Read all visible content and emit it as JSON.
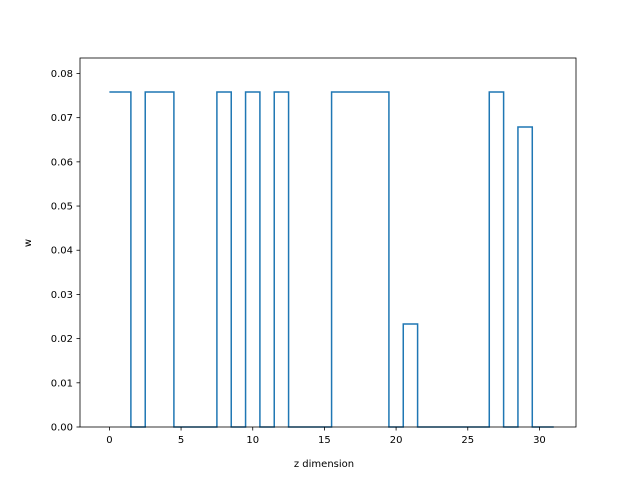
{
  "chart_data": {
    "type": "line",
    "step": "mid",
    "title": "",
    "xlabel": "z dimension",
    "ylabel": "w",
    "xlim": [
      -2.05,
      32.55
    ],
    "ylim": [
      0,
      0.0835
    ],
    "xticks": [
      0,
      5,
      10,
      15,
      20,
      25,
      30
    ],
    "xtick_labels": [
      "0",
      "5",
      "10",
      "15",
      "20",
      "25",
      "30"
    ],
    "yticks": [
      0,
      0.01,
      0.02,
      0.03,
      0.04,
      0.05,
      0.06,
      0.07,
      0.08
    ],
    "ytick_labels": [
      "0.00",
      "0.01",
      "0.02",
      "0.03",
      "0.04",
      "0.05",
      "0.06",
      "0.07",
      "0.08"
    ],
    "grid": false,
    "line_color": "#1f77b4",
    "series": [
      {
        "x": [
          0,
          1,
          2,
          3,
          4,
          5,
          6,
          7,
          8,
          9,
          10,
          11,
          12,
          13,
          14,
          15,
          16,
          17,
          18,
          19,
          20,
          21,
          22,
          23,
          24,
          25,
          26,
          27,
          28,
          29,
          30,
          31
        ],
        "values": [
          0.0758,
          0.0758,
          0,
          0.0758,
          0.0758,
          0,
          0,
          0,
          0.0758,
          0,
          0.0758,
          0,
          0.0758,
          0,
          0,
          0,
          0.0758,
          0.0758,
          0.0758,
          0.0758,
          0,
          0.0233,
          0,
          0,
          0,
          0,
          0,
          0.0758,
          0,
          0.0679,
          0,
          0
        ]
      }
    ]
  }
}
